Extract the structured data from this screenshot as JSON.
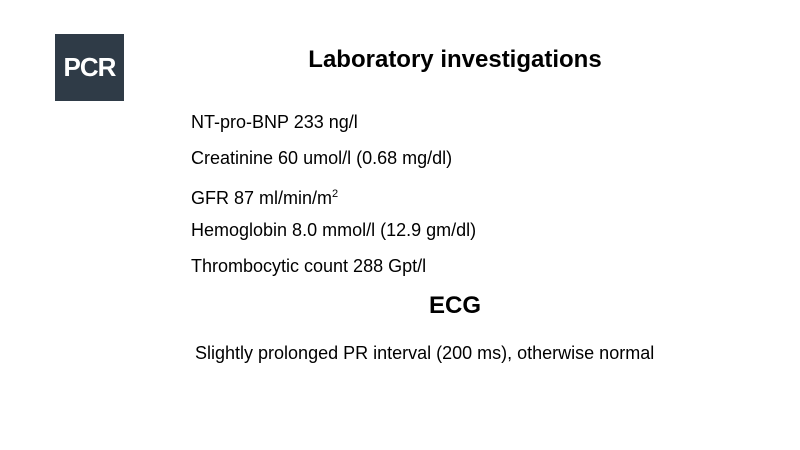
{
  "logo": {
    "text": "PCR",
    "color": "#2f3b47"
  },
  "title": "Laboratory investigations",
  "labs": [
    {
      "text": "NT-pro-BNP 233 ng/l"
    },
    {
      "text": "Creatinine 60 umol/l (0.68 mg/dl)"
    },
    {
      "text": "GFR 87 ml/min/m",
      "sup": "2"
    },
    {
      "text": "Hemoglobin 8.0 mmol/l (12.9 gm/dl)"
    },
    {
      "text": "Thrombocytic count 288 Gpt/l"
    }
  ],
  "ecg": {
    "heading": "ECG",
    "text": "Slightly prolonged PR interval (200 ms), otherwise normal"
  }
}
